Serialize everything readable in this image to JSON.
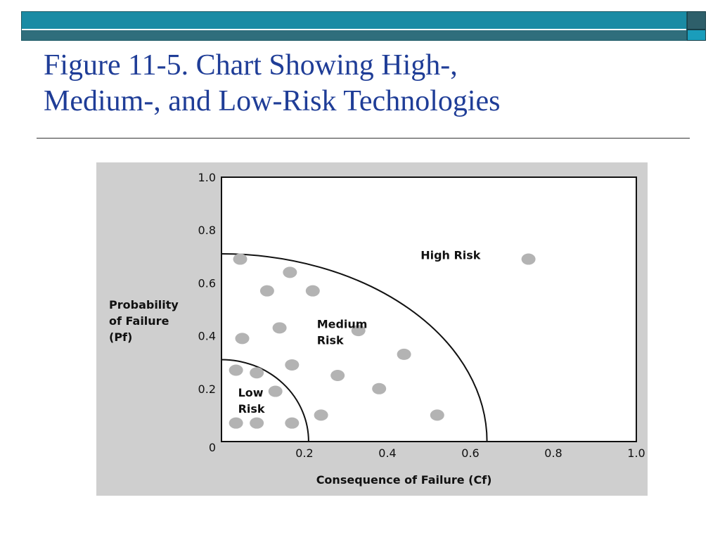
{
  "slide": {
    "title_line1": "Figure 11-5. Chart Showing High-,",
    "title_line2": "Medium-, and Low-Risk Technologies"
  },
  "colors": {
    "bar_primary": "#1a8ba4",
    "bar_secondary": "#2f6e7c",
    "title_text": "#1f3d97",
    "chart_background": "#cfcfcf",
    "plot_background": "#ffffff",
    "point_color": "#b3b3b3"
  },
  "chart_data": {
    "type": "scatter",
    "title": "",
    "xlabel": "Consequence of Failure (Cf)",
    "ylabel": [
      "Probability",
      "of Failure",
      "(Pf)"
    ],
    "xlim": [
      0,
      1.0
    ],
    "ylim": [
      0,
      1.0
    ],
    "x_ticks": [
      "0.2",
      "0.4",
      "0.6",
      "0.8",
      "1.0"
    ],
    "x_tick_values": [
      0.2,
      0.4,
      0.6,
      0.8,
      1.0
    ],
    "y_ticks": [
      "0",
      "0.2",
      "0.4",
      "0.6",
      "0.8",
      "1.0"
    ],
    "y_tick_values": [
      0,
      0.2,
      0.4,
      0.6,
      0.8,
      1.0
    ],
    "grid": false,
    "region_boundaries": [
      {
        "name": "low",
        "radius_x": 0.21,
        "radius_y": 0.31
      },
      {
        "name": "medium",
        "radius_x": 0.64,
        "radius_y": 0.71
      }
    ],
    "region_labels": [
      {
        "lines": [
          "Low",
          "Risk"
        ],
        "x": 0.04,
        "y": 0.17
      },
      {
        "lines": [
          "Medium",
          "Risk"
        ],
        "x": 0.23,
        "y": 0.43
      },
      {
        "lines": [
          "High Risk"
        ],
        "x": 0.48,
        "y": 0.69
      }
    ],
    "points": [
      {
        "x": 0.045,
        "y": 0.69
      },
      {
        "x": 0.165,
        "y": 0.64
      },
      {
        "x": 0.11,
        "y": 0.57
      },
      {
        "x": 0.22,
        "y": 0.57
      },
      {
        "x": 0.05,
        "y": 0.39
      },
      {
        "x": 0.14,
        "y": 0.43
      },
      {
        "x": 0.33,
        "y": 0.42
      },
      {
        "x": 0.035,
        "y": 0.27
      },
      {
        "x": 0.085,
        "y": 0.26
      },
      {
        "x": 0.17,
        "y": 0.29
      },
      {
        "x": 0.28,
        "y": 0.25
      },
      {
        "x": 0.44,
        "y": 0.33
      },
      {
        "x": 0.13,
        "y": 0.19
      },
      {
        "x": 0.38,
        "y": 0.2
      },
      {
        "x": 0.035,
        "y": 0.07
      },
      {
        "x": 0.085,
        "y": 0.07
      },
      {
        "x": 0.17,
        "y": 0.07
      },
      {
        "x": 0.24,
        "y": 0.1
      },
      {
        "x": 0.52,
        "y": 0.1
      },
      {
        "x": 0.74,
        "y": 0.69
      }
    ]
  }
}
